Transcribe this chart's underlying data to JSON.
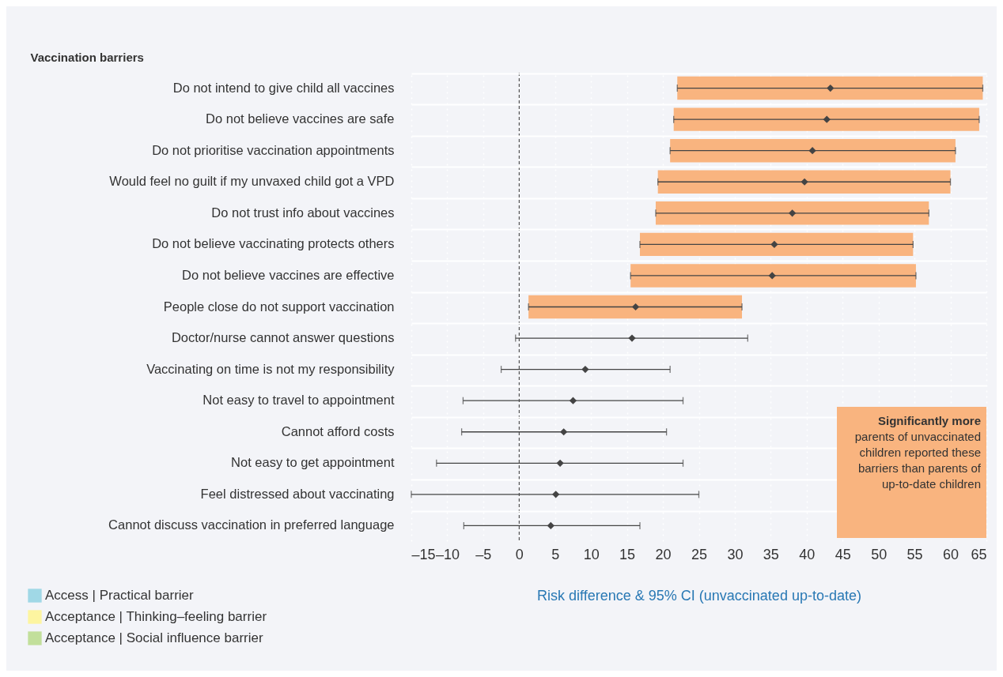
{
  "chart_data": {
    "type": "scatter",
    "orientation": "horizontal",
    "ylabel": "Vaccination barriers",
    "xlabel": "Risk difference & 95% CI (unvaccinated up-to-date)",
    "categories": [
      "Do not intend to give child all vaccines",
      "Do not believe vaccines are safe",
      "Do not prioritise vaccination appointments",
      "Would feel no guilt if my unvaxed child got a VPD",
      "Do not trust info about vaccines",
      "Do not believe vaccinating protects others",
      "Do not believe vaccines are effective",
      "People close do not support vaccination",
      "Doctor/nurse cannot answer questions",
      "Vaccinating on time is not my responsibility",
      "Not easy to travel to appointment",
      "Cannot afford costs",
      "Not easy to get appointment",
      "Feel distressed about vaccinating",
      "Cannot discuss vaccination in preferred language"
    ],
    "series": [
      {
        "type": "bar",
        "name": "Access | Practical barrier",
        "color": "#a0d8e6",
        "values": [
          null,
          null,
          null,
          null,
          null,
          null,
          null,
          null,
          null,
          null,
          null,
          null,
          null,
          null,
          null
        ]
      },
      {
        "type": "bar",
        "name": "Acceptance | Thinking–feeling barrier",
        "color": "#fdf5a0",
        "values": [
          null,
          null,
          null,
          null,
          null,
          null,
          null,
          null,
          null,
          null,
          null,
          null,
          null,
          null,
          null
        ]
      },
      {
        "type": "bar",
        "name": "Acceptance | Social influence barrier",
        "color": "#c2df9b",
        "values": [
          null,
          null,
          null,
          null,
          null,
          null,
          null,
          null,
          null,
          null,
          null,
          null,
          null,
          null,
          null
        ]
      },
      {
        "type": "bar",
        "color": "#f9b47f",
        "base": [
          22,
          21.5,
          21,
          19.3,
          19,
          16.8,
          15.5,
          1.3,
          null,
          null,
          null,
          null,
          null,
          null,
          null
        ],
        "values": [
          42.5,
          42.5,
          39.7,
          40.7,
          38,
          38,
          39.7,
          29.7,
          null,
          null,
          null,
          null,
          null,
          null,
          null
        ]
      },
      {
        "color": "#444444",
        "values": [
          43.3,
          42.8,
          40.8,
          39.7,
          38,
          35.5,
          35.2,
          16.2,
          15.7,
          9.2,
          7.5,
          6.2,
          5.7,
          5.1,
          4.4
        ],
        "errors": [
          [
            22,
            64.5
          ],
          [
            21.5,
            64
          ],
          [
            21,
            60.7
          ],
          [
            19.3,
            60
          ],
          [
            19,
            57
          ],
          [
            16.8,
            54.8
          ],
          [
            15.5,
            55.2
          ],
          [
            1.3,
            31
          ],
          [
            -0.5,
            31.8
          ],
          [
            -2.5,
            21
          ],
          [
            -7.8,
            22.8
          ],
          [
            -8,
            20.5
          ],
          [
            -11.5,
            22.8
          ],
          [
            -15,
            25
          ],
          [
            -7.7,
            16.8
          ]
        ]
      }
    ],
    "xlim": [
      -15,
      65
    ],
    "xticks": [
      {
        "value": -15,
        "label": "–15"
      },
      {
        "value": -10,
        "label": "–10"
      },
      {
        "value": -5,
        "label": "–5"
      },
      0,
      5,
      10,
      15,
      20,
      25,
      30,
      35,
      40,
      45,
      50,
      55,
      60,
      65
    ],
    "ref_lines": [
      {
        "axis": "x",
        "value": 0,
        "line_style": "dashed"
      }
    ],
    "annotations": [
      "Significantly more parents of unvaccinated children reported these barriers than parents of up-to-date children"
    ],
    "marker": "diamond",
    "grid": true,
    "legend": "bottom left"
  }
}
